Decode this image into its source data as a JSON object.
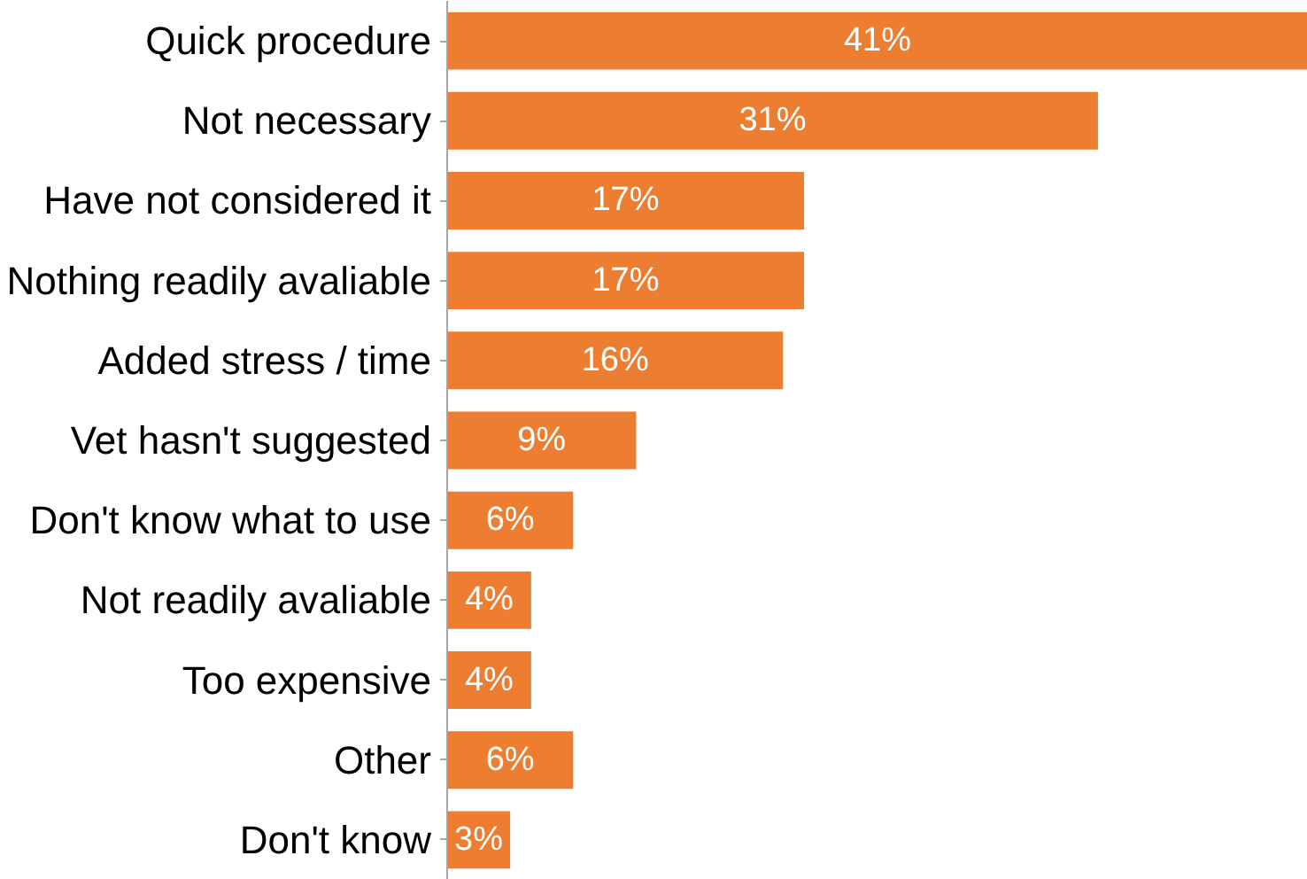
{
  "chart_data": {
    "type": "bar",
    "orientation": "horizontal",
    "categories": [
      "Quick procedure",
      "Not necessary",
      "Have not considered it",
      "Nothing readily avaliable",
      "Added stress / time",
      "Vet hasn't suggested",
      "Don't know what to use",
      "Not readily avaliable",
      "Too expensive",
      "Other",
      "Don't know"
    ],
    "values": [
      41,
      31,
      17,
      17,
      16,
      9,
      6,
      4,
      4,
      6,
      3
    ],
    "value_labels": [
      "41%",
      "31%",
      "17%",
      "17%",
      "16%",
      "9%",
      "6%",
      "4%",
      "4%",
      "6%",
      "3%"
    ],
    "color": "#ed7d31"
  }
}
